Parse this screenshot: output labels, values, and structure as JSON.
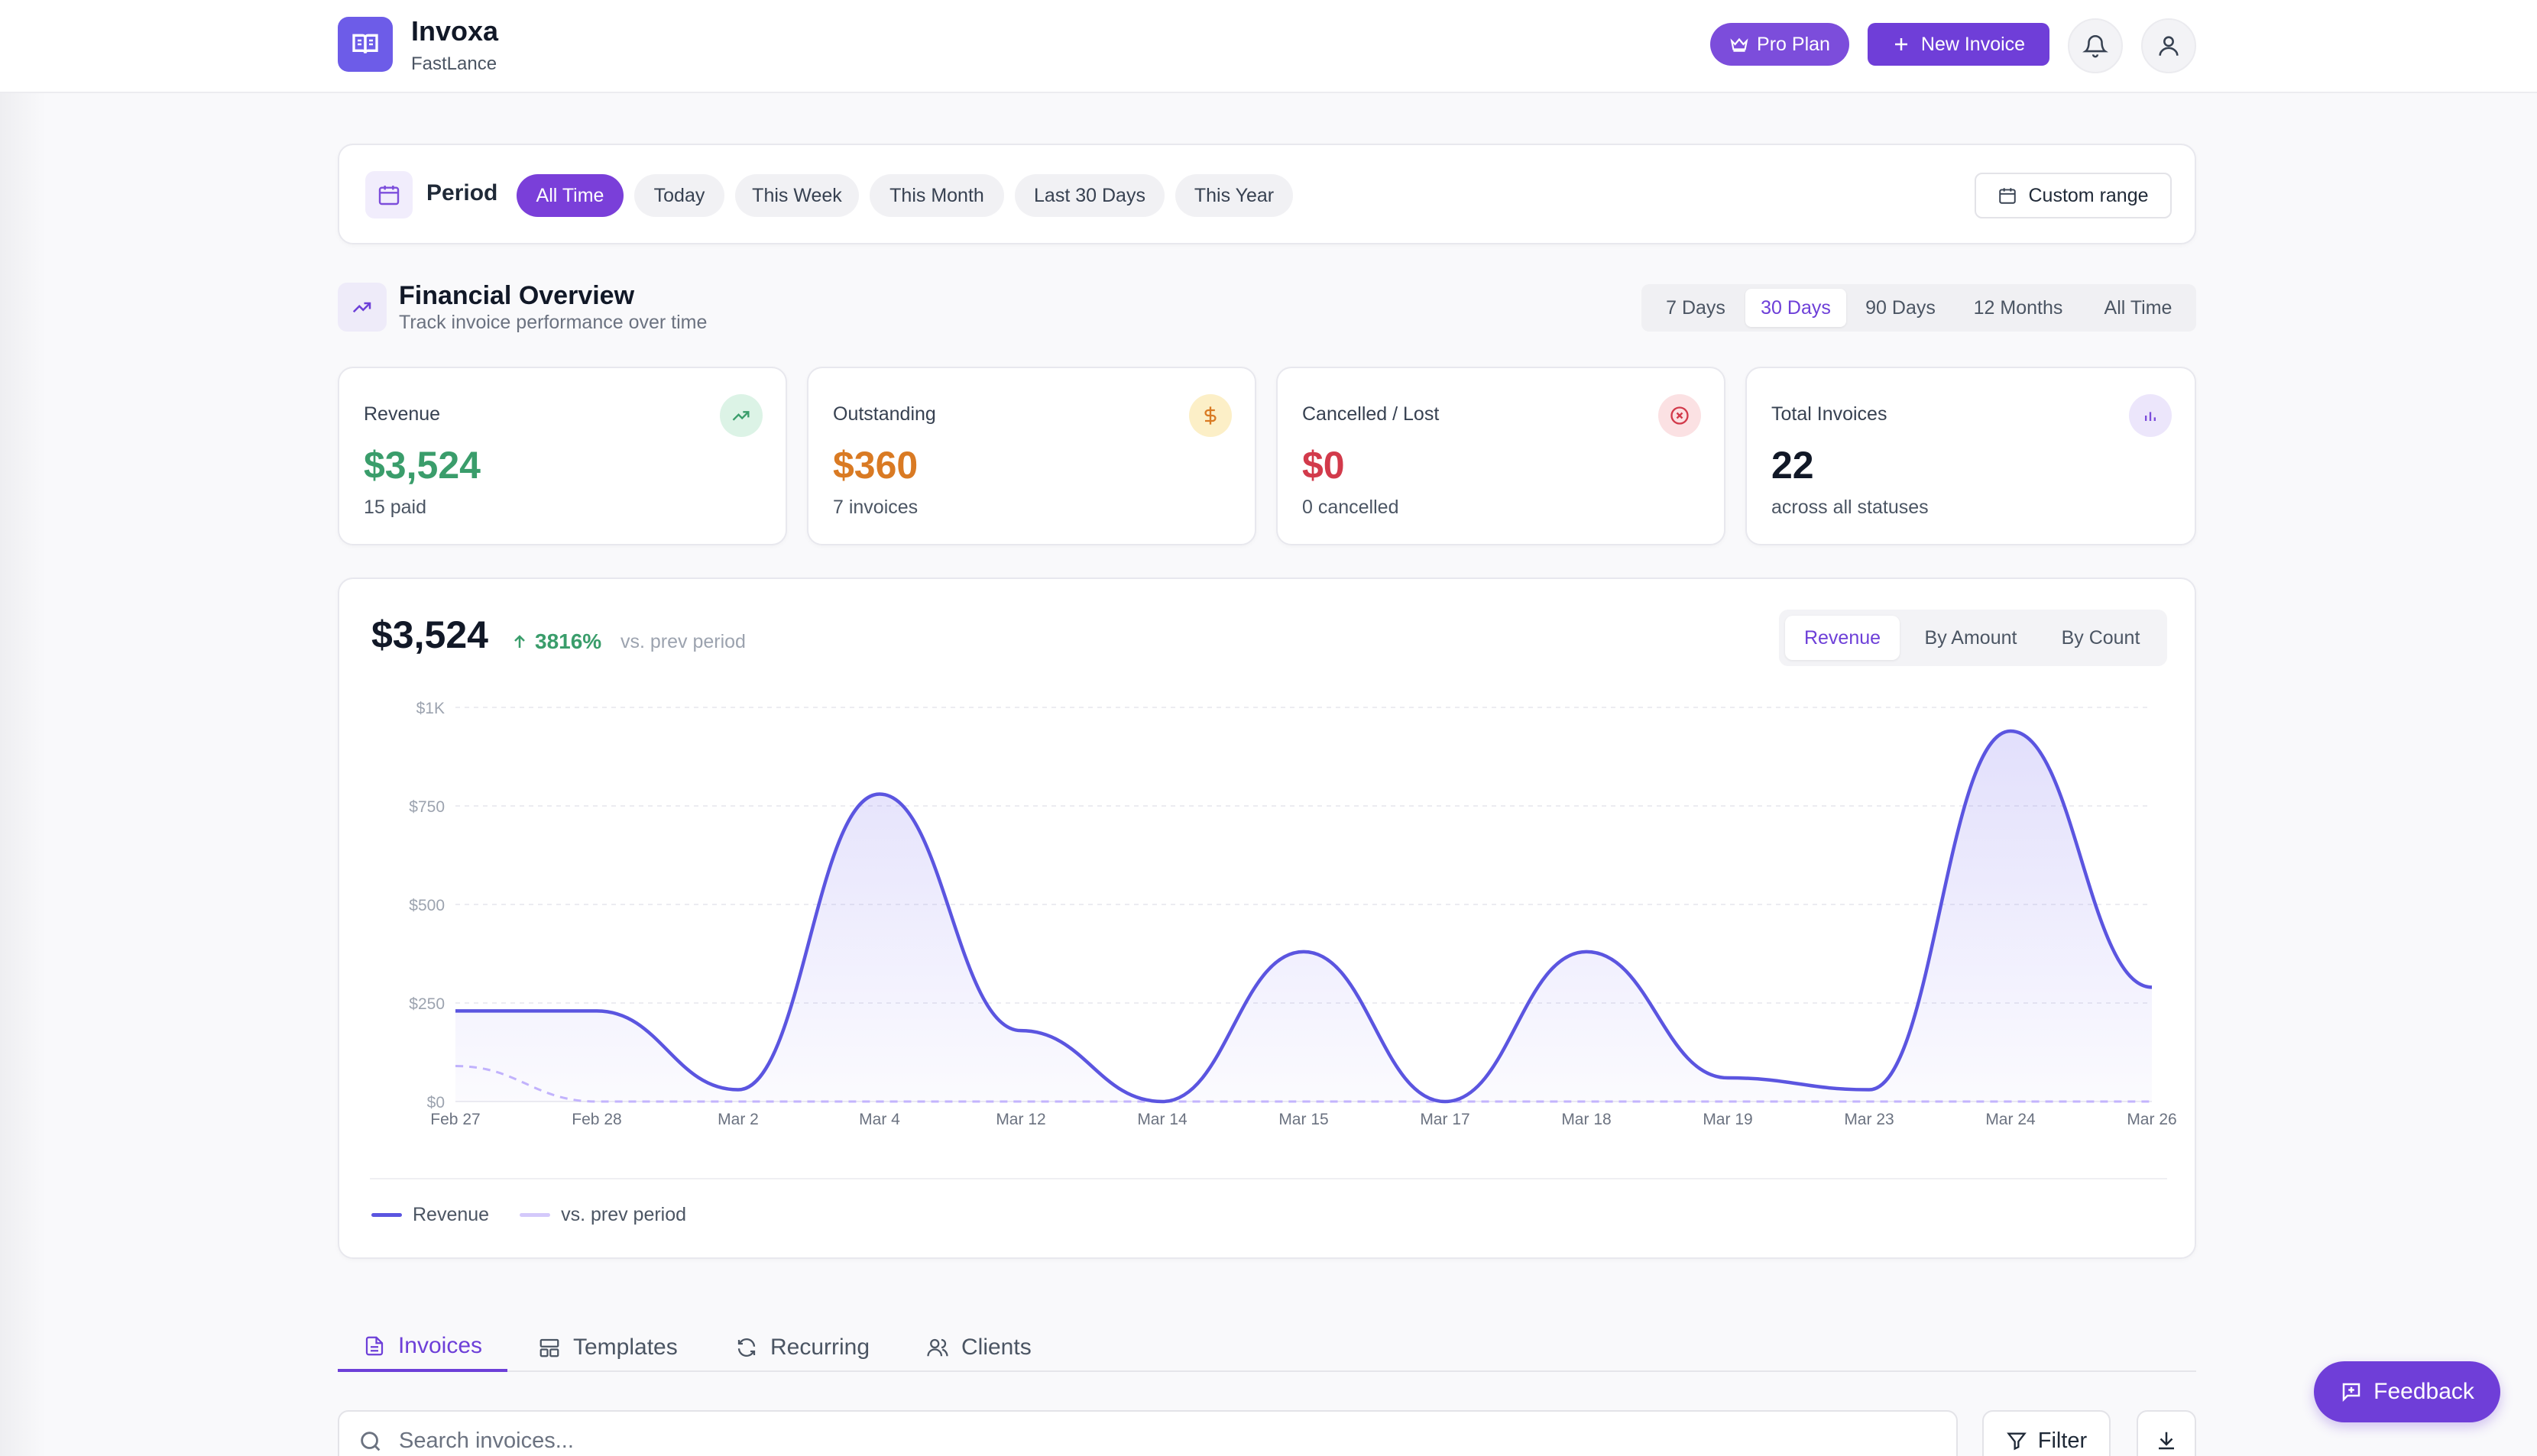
{
  "app": {
    "name": "Invoxa",
    "workspace": "FastLance",
    "pro_label": "Pro Plan",
    "new_invoice_label": "New Invoice"
  },
  "period": {
    "label": "Period",
    "options": [
      "All Time",
      "Today",
      "This Week",
      "This Month",
      "Last 30 Days",
      "This Year"
    ],
    "selected": "All Time",
    "custom_label": "Custom range"
  },
  "overview": {
    "title": "Financial Overview",
    "subtitle": "Track invoice performance over time",
    "ranges": [
      "7 Days",
      "30 Days",
      "90 Days",
      "12 Months",
      "All Time"
    ],
    "selected_range": "30 Days"
  },
  "stats": [
    {
      "label": "Revenue",
      "value": "$3,524",
      "sub": "15 paid",
      "color": "#3a9d6b",
      "icon": "trending-up-icon"
    },
    {
      "label": "Outstanding",
      "value": "$360",
      "sub": "7 invoices",
      "color": "#d97a23",
      "icon": "dollar-icon"
    },
    {
      "label": "Cancelled / Lost",
      "value": "$0",
      "sub": "0 cancelled",
      "color": "#d23a4b",
      "icon": "x-circle-icon"
    },
    {
      "label": "Total Invoices",
      "value": "22",
      "sub": "across all statuses",
      "color": "#111827",
      "icon": "bar-chart-icon"
    }
  ],
  "chart_panel": {
    "total": "$3,524",
    "change": "3816%",
    "change_label": "vs. prev period",
    "metric_tabs": [
      "Revenue",
      "By Amount",
      "By Count"
    ],
    "selected_metric": "Revenue",
    "legend": [
      "Revenue",
      "vs. prev period"
    ]
  },
  "chart_data": {
    "type": "area",
    "categories": [
      "Feb 27",
      "Feb 28",
      "Mar 2",
      "Mar 4",
      "Mar 12",
      "Mar 14",
      "Mar 15",
      "Mar 17",
      "Mar 18",
      "Mar 19",
      "Mar 23",
      "Mar 24",
      "Mar 26"
    ],
    "series": [
      {
        "name": "Revenue",
        "values": [
          230,
          230,
          30,
          780,
          180,
          0,
          380,
          0,
          380,
          60,
          30,
          940,
          290
        ],
        "color": "#5b55e0"
      },
      {
        "name": "vs. prev period",
        "values": [
          90,
          0,
          0,
          0,
          0,
          0,
          0,
          0,
          0,
          0,
          0,
          0,
          0
        ],
        "color": "#c4b5fd",
        "dashed": true
      }
    ],
    "yticks": [
      "$0",
      "$250",
      "$500",
      "$750",
      "$1K"
    ],
    "ytick_values": [
      0,
      250,
      500,
      750,
      1000
    ],
    "ylim": [
      0,
      1000
    ],
    "grid": true
  },
  "tabs": [
    "Invoices",
    "Templates",
    "Recurring",
    "Clients"
  ],
  "selected_tab": "Invoices",
  "search": {
    "placeholder": "Search invoices..."
  },
  "filter_label": "Filter",
  "feedback_label": "Feedback"
}
